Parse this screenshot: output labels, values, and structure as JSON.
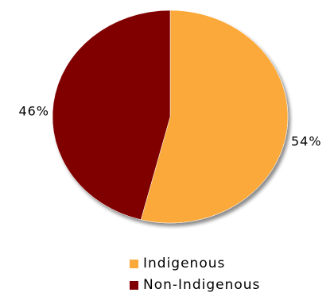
{
  "chart_data": {
    "type": "pie",
    "title": "",
    "series": [
      {
        "name": "",
        "slices": [
          {
            "label": "Indigenous",
            "value": 54,
            "display": "54%",
            "color": "#FBA93A"
          },
          {
            "label": "Non-Indigenous",
            "value": 46,
            "display": "46%",
            "color": "#800000"
          }
        ]
      }
    ],
    "start_angle_deg": 0,
    "direction": "clockwise",
    "legend_position": "bottom"
  },
  "legend": {
    "items": [
      {
        "label": "Indigenous",
        "color": "#FBA93A"
      },
      {
        "label": "Non-Indigenous",
        "color": "#800000"
      }
    ]
  }
}
